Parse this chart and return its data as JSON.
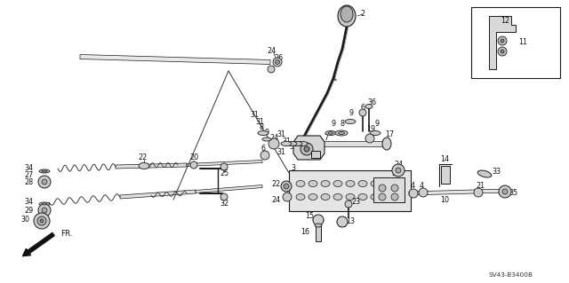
{
  "bg_color": "#ffffff",
  "diagram_code": "SV43-B3400B",
  "fig_width": 6.4,
  "fig_height": 3.19,
  "dpi": 100,
  "line_color": "#1a1a1a",
  "text_color": "#111111",
  "label_fontsize": 5.8
}
